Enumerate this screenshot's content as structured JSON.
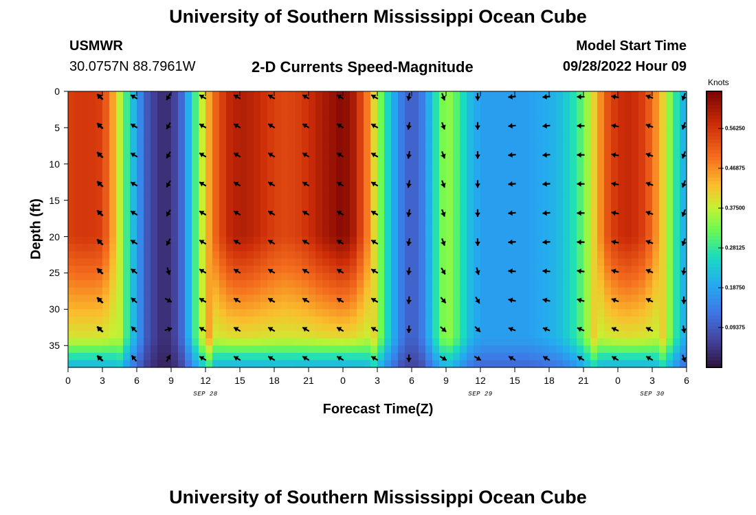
{
  "header": {
    "title": "University of Southern Mississippi Ocean Cube",
    "station": "USMWR",
    "coords": "30.0757N  88.7961W",
    "chart_subtitle": "2-D Currents Speed-Magnitude",
    "model_label": "Model Start Time",
    "model_time": "09/28/2022 Hour 09"
  },
  "footer": {
    "title": "University of Southern Mississippi Ocean Cube"
  },
  "chart_data": {
    "type": "heatmap",
    "title": "2-D Currents Speed-Magnitude",
    "xlabel": "Forecast Time(Z)",
    "ylabel": "Depth (ft)",
    "x_range": [
      0,
      54
    ],
    "y_range": [
      0,
      38
    ],
    "x_ticks": [
      0,
      3,
      6,
      9,
      12,
      15,
      18,
      21,
      24,
      27,
      30,
      33,
      36,
      39,
      42,
      45,
      48,
      51,
      54
    ],
    "x_tick_labels": [
      "0",
      "3",
      "6",
      "9",
      "12",
      "15",
      "18",
      "21",
      "0",
      "3",
      "6",
      "9",
      "12",
      "15",
      "18",
      "21",
      "0",
      "3",
      "6"
    ],
    "y_ticks": [
      0,
      5,
      10,
      15,
      20,
      25,
      30,
      35
    ],
    "y_tick_labels": [
      "0",
      "5",
      "10",
      "15",
      "20",
      "25",
      "30",
      "35"
    ],
    "date_labels": [
      {
        "label": "SEP 28",
        "x": 12
      },
      {
        "label": "SEP 29",
        "x": 36
      },
      {
        "label": "SEP 30",
        "x": 51
      }
    ],
    "colorbar": {
      "label": "Knots",
      "min": 0.0,
      "max": 0.65,
      "ticks": [
        0.09375,
        0.1875,
        0.28125,
        0.375,
        0.46875,
        0.5625
      ],
      "tick_labels": [
        "0.09375",
        "0.18750",
        "0.28125",
        "0.37500",
        "0.46875",
        "0.56250"
      ]
    },
    "surface_speed_profile": {
      "hours": [
        0,
        1,
        2,
        3,
        4,
        5,
        6,
        7,
        8,
        9,
        10,
        11,
        12,
        13,
        14,
        15,
        16,
        17,
        18,
        19,
        20,
        21,
        22,
        23,
        24,
        25,
        26,
        27,
        28,
        29,
        30,
        31,
        32,
        33,
        34,
        35,
        36,
        37,
        38,
        39,
        40,
        41,
        42,
        43,
        44,
        45,
        46,
        47,
        48,
        49,
        50,
        51,
        52,
        53,
        54
      ],
      "speed_knots": [
        0.55,
        0.56,
        0.56,
        0.55,
        0.44,
        0.3,
        0.18,
        0.08,
        0.04,
        0.04,
        0.12,
        0.28,
        0.42,
        0.52,
        0.58,
        0.6,
        0.59,
        0.57,
        0.55,
        0.54,
        0.55,
        0.57,
        0.6,
        0.62,
        0.64,
        0.6,
        0.5,
        0.36,
        0.24,
        0.14,
        0.09,
        0.14,
        0.26,
        0.36,
        0.3,
        0.22,
        0.18,
        0.18,
        0.18,
        0.18,
        0.18,
        0.19,
        0.2,
        0.22,
        0.26,
        0.32,
        0.42,
        0.52,
        0.57,
        0.58,
        0.56,
        0.5,
        0.4,
        0.28,
        0.18
      ]
    },
    "vector_depths_ft": [
      0,
      4,
      8,
      12,
      16,
      20,
      24,
      28,
      32,
      36
    ],
    "vector_hours": [
      0,
      3,
      6,
      9,
      12,
      15,
      18,
      21,
      24,
      27,
      30,
      33,
      36,
      39,
      42,
      45,
      48,
      51,
      54
    ],
    "vector_direction_deg": [
      315,
      315,
      300,
      210,
      300,
      300,
      300,
      300,
      300,
      300,
      190,
      160,
      180,
      265,
      265,
      270,
      280,
      290,
      200
    ],
    "vector_direction_deep_deg": [
      315,
      315,
      320,
      30,
      300,
      300,
      300,
      300,
      300,
      300,
      180,
      120,
      120,
      300,
      300,
      300,
      300,
      300,
      160
    ]
  }
}
